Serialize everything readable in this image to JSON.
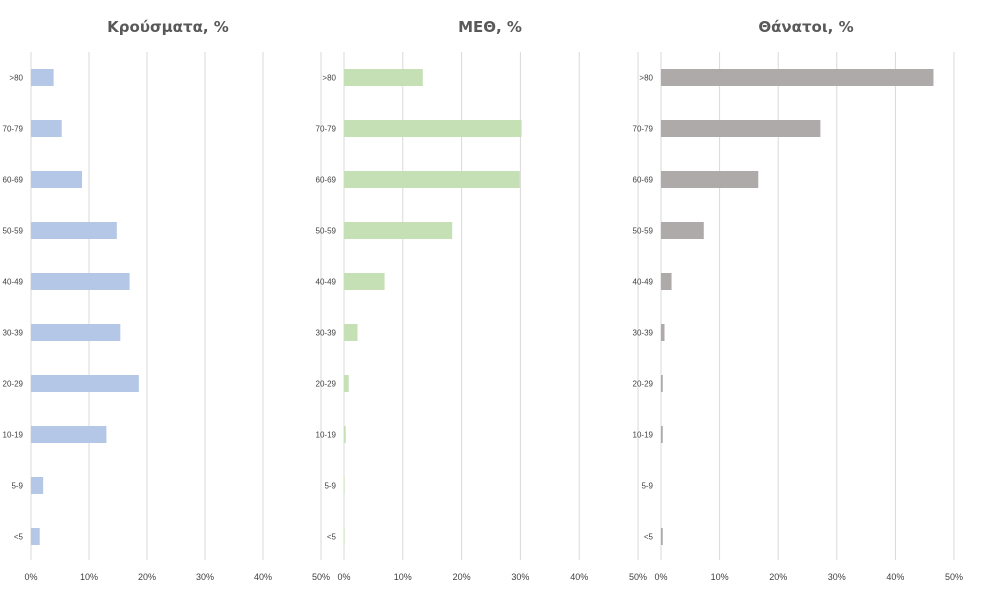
{
  "chart_data": [
    {
      "type": "bar",
      "orientation": "horizontal",
      "title": "Κρούσματα, %",
      "categories": [
        ">80",
        "70-79",
        "60-69",
        "50-59",
        "40-49",
        "30-39",
        "20-29",
        "10-19",
        "5-9",
        "<5"
      ],
      "values": [
        3.9,
        5.3,
        8.8,
        14.8,
        17.0,
        15.4,
        18.6,
        13.0,
        2.1,
        1.5
      ],
      "xlim": [
        0,
        50
      ],
      "xticks": [
        "0%",
        "10%",
        "20%",
        "30%",
        "40%",
        "50%"
      ],
      "grid": true,
      "color": "#b4c7e7"
    },
    {
      "type": "bar",
      "orientation": "horizontal",
      "title": "ΜΕΘ, %",
      "categories": [
        ">80",
        "70-79",
        "60-69",
        "50-59",
        "40-49",
        "30-39",
        "20-29",
        "10-19",
        "5-9",
        "<5"
      ],
      "values": [
        13.4,
        30.2,
        29.9,
        18.4,
        6.9,
        2.3,
        0.8,
        0.3,
        0.1,
        0.1
      ],
      "xlim": [
        0,
        50
      ],
      "xticks": [
        "0%",
        "10%",
        "20%",
        "30%",
        "40%",
        "50%"
      ],
      "grid": true,
      "color": "#c5e0b4"
    },
    {
      "type": "bar",
      "orientation": "horizontal",
      "title": "Θάνατοι, %",
      "categories": [
        ">80",
        "70-79",
        "60-69",
        "50-59",
        "40-49",
        "30-39",
        "20-29",
        "10-19",
        "5-9",
        "<5"
      ],
      "values": [
        46.5,
        27.2,
        16.6,
        7.3,
        1.8,
        0.6,
        0.3,
        0.3,
        0,
        0.3
      ],
      "xlim": [
        0,
        50
      ],
      "xticks": [
        "0%",
        "10%",
        "20%",
        "30%",
        "40%",
        "50%"
      ],
      "grid": true,
      "color": "#aeaaaa"
    }
  ]
}
